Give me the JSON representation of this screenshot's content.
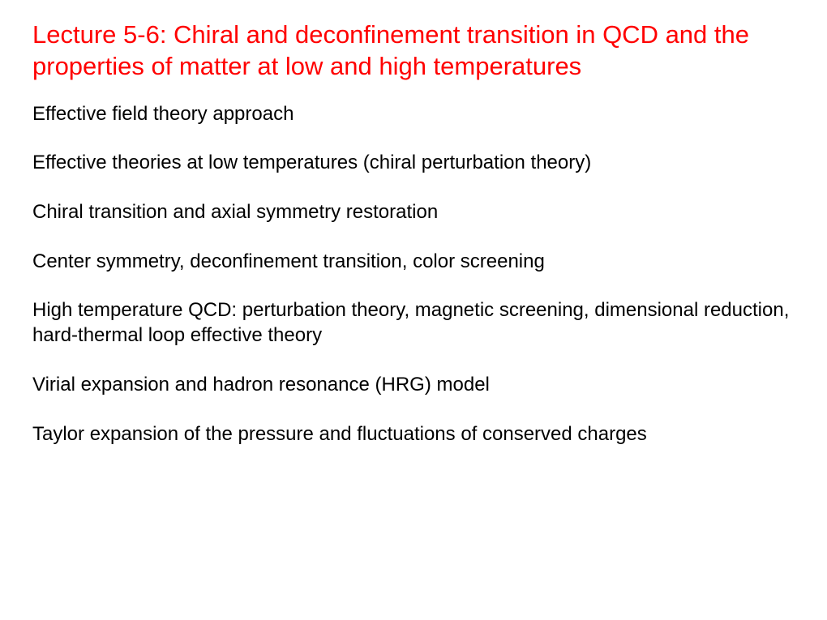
{
  "slide": {
    "title": "Lecture 5-6: Chiral and deconfinement transition in QCD and the properties of matter at low and high temperatures",
    "title_color": "#ff0000",
    "title_fontsize": 31,
    "body_color": "#000000",
    "body_fontsize": 24,
    "background_color": "#ffffff",
    "items": [
      "Effective field theory approach",
      "Effective theories at low temperatures (chiral perturbation theory)",
      "Chiral transition and axial symmetry restoration",
      "Center symmetry, deconfinement transition, color screening",
      "High temperature QCD: perturbation theory, magnetic screening, dimensional reduction, hard-thermal loop effective theory",
      "Virial expansion and hadron resonance (HRG) model",
      "Taylor expansion of the pressure and fluctuations of conserved charges"
    ]
  }
}
